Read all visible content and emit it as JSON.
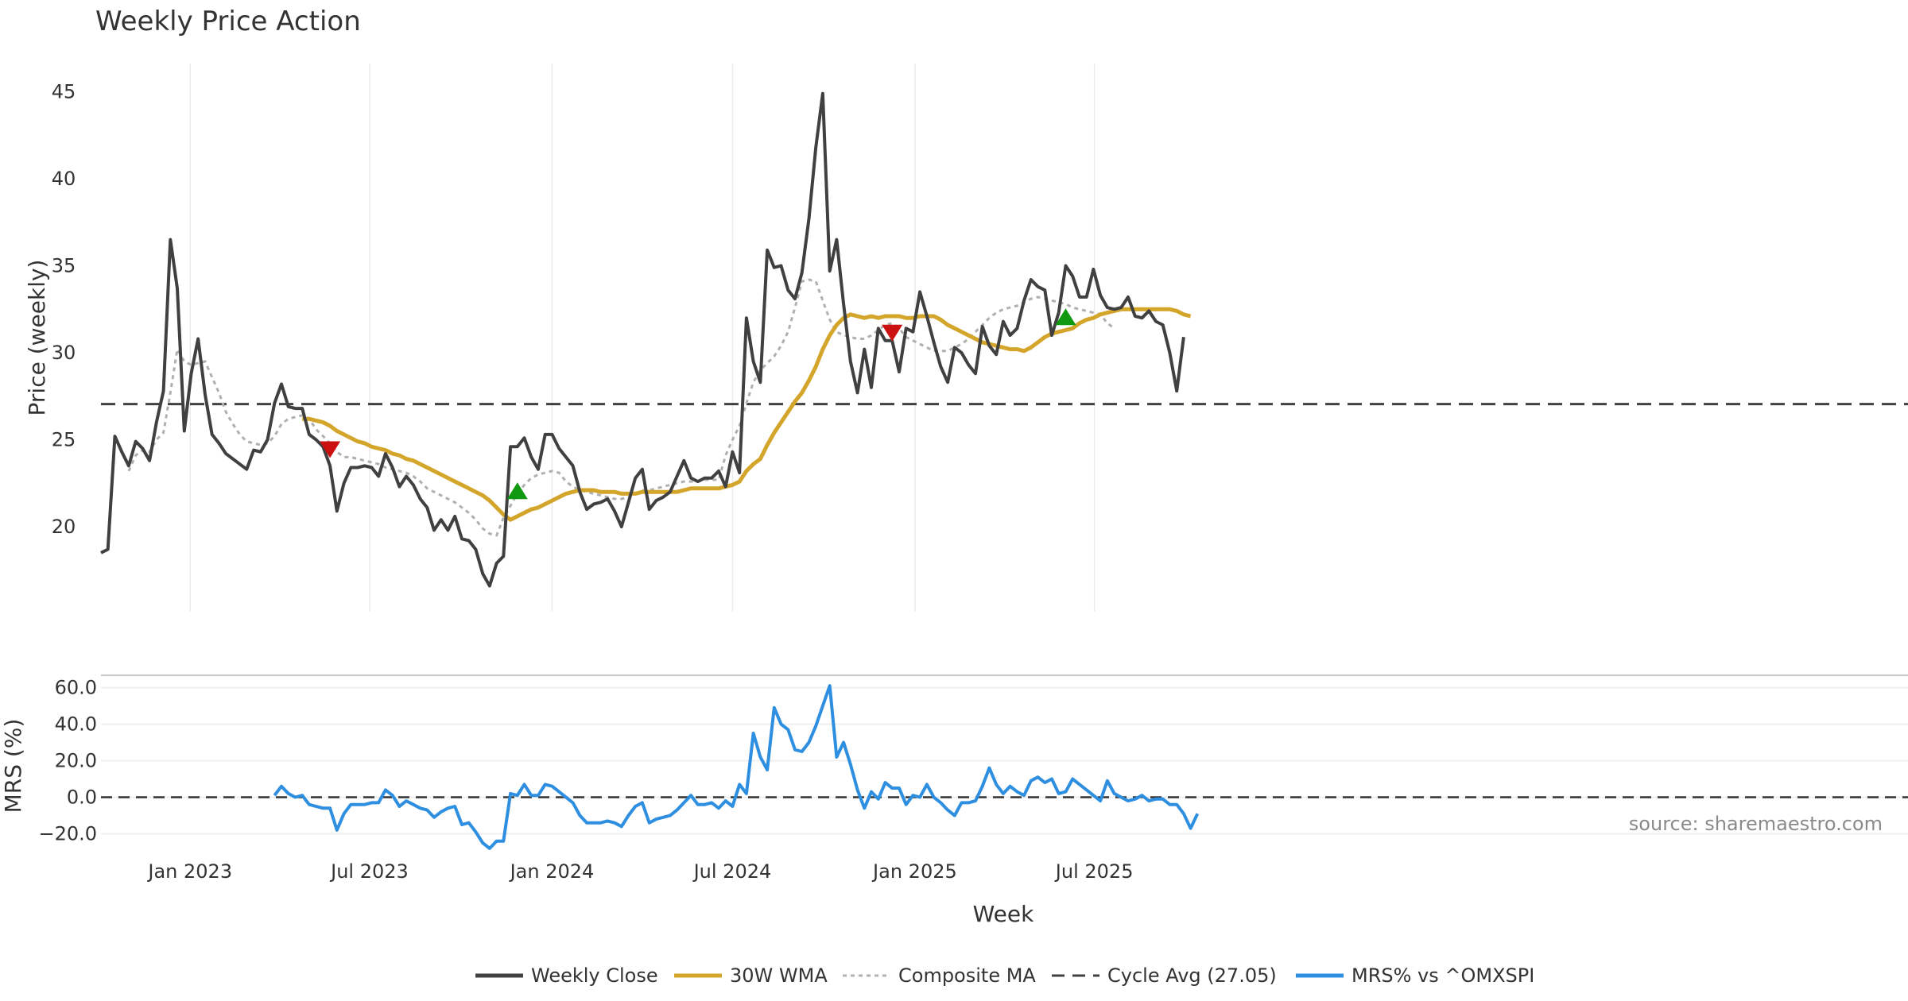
{
  "title": "Weekly Price Action",
  "watermark": "source: sharemaestro.com",
  "colors": {
    "close": "#404040",
    "wma": "#d4a52b",
    "composite": "#b0b0b0",
    "cycle": "#404040",
    "mrs": "#2e8fe0",
    "buy": "#119911",
    "sell": "#cc1111"
  },
  "chart_data": [
    {
      "type": "line",
      "title": "Weekly Price Action",
      "xlabel": "",
      "ylabel": "Price (weekly)",
      "x_type": "date",
      "x_ticks": [
        "Jan 2023",
        "Jul 2023",
        "Jan 2024",
        "Jul 2024",
        "Jan 2025",
        "Jul 2025"
      ],
      "y_ticks": [
        20,
        25,
        30,
        35,
        40,
        45
      ],
      "ylim": [
        15,
        46.5
      ],
      "grid": "vertical",
      "start_date": "2022-10-03",
      "end_date": "2025-10-13",
      "series": [
        {
          "name": "Weekly Close",
          "values": [
            18.5,
            18.7,
            25.2,
            24.3,
            23.5,
            24.9,
            24.5,
            23.8,
            26.0,
            27.8,
            36.5,
            33.7,
            25.5,
            28.8,
            30.8,
            27.6,
            25.3,
            24.8,
            24.2,
            23.9,
            23.6,
            23.3,
            24.4,
            24.3,
            25.0,
            27.1,
            28.2,
            26.9,
            26.8,
            26.8,
            25.3,
            25.0,
            24.6,
            23.5,
            20.9,
            22.5,
            23.4,
            23.4,
            23.5,
            23.4,
            22.9,
            24.2,
            23.4,
            22.3,
            22.9,
            22.4,
            21.6,
            21.1,
            19.8,
            20.4,
            19.8,
            20.6,
            19.3,
            19.2,
            18.7,
            17.3,
            16.6,
            17.9,
            18.3,
            24.6,
            24.6,
            25.1,
            24.0,
            23.3,
            25.3,
            25.3,
            24.5,
            24.0,
            23.5,
            22.0,
            21.0,
            21.3,
            21.4,
            21.6,
            20.9,
            20.0,
            21.4,
            22.8,
            23.3,
            21.0,
            21.5,
            21.7,
            22.0,
            22.9,
            23.8,
            22.8,
            22.6,
            22.8,
            22.8,
            23.2,
            22.3,
            24.3,
            23.1,
            32.0,
            29.5,
            28.3,
            35.9,
            34.9,
            35.0,
            33.6,
            33.1,
            34.6,
            37.7,
            41.8,
            44.9,
            34.7,
            36.5,
            32.8,
            29.5,
            27.7,
            30.2,
            28.0,
            31.4,
            30.7,
            30.7,
            28.9,
            31.4,
            31.2,
            33.5,
            32.1,
            30.6,
            29.2,
            28.3,
            30.3,
            30.0,
            29.3,
            28.8,
            31.5,
            30.4,
            29.9,
            31.8,
            31.0,
            31.4,
            33.0,
            34.2,
            33.8,
            33.6,
            31.0,
            32.3,
            35.0,
            34.4,
            33.2,
            33.2,
            34.8,
            33.3,
            32.6,
            32.5,
            32.6,
            33.2,
            32.1,
            32.0,
            32.4,
            31.8,
            31.6,
            30.0,
            27.8,
            30.9
          ]
        },
        {
          "name": "30W WMA",
          "start_index": 29,
          "values": [
            26.2,
            26.2,
            26.1,
            26.0,
            25.8,
            25.5,
            25.3,
            25.1,
            24.9,
            24.8,
            24.6,
            24.5,
            24.4,
            24.2,
            24.1,
            23.9,
            23.8,
            23.6,
            23.4,
            23.2,
            23.0,
            22.8,
            22.6,
            22.4,
            22.2,
            22.0,
            21.8,
            21.5,
            21.1,
            20.7,
            20.4,
            20.6,
            20.8,
            21.0,
            21.1,
            21.3,
            21.5,
            21.7,
            21.9,
            22.0,
            22.1,
            22.1,
            22.1,
            22.0,
            22.0,
            22.0,
            21.9,
            21.9,
            21.9,
            22.0,
            22.0,
            22.0,
            22.0,
            22.0,
            22.0,
            22.1,
            22.2,
            22.2,
            22.2,
            22.2,
            22.2,
            22.3,
            22.4,
            22.6,
            23.2,
            23.6,
            23.9,
            24.7,
            25.4,
            26.0,
            26.6,
            27.2,
            27.7,
            28.4,
            29.2,
            30.2,
            31.0,
            31.6,
            32.0,
            32.2,
            32.1,
            32.0,
            32.1,
            32.0,
            32.1,
            32.1,
            32.1,
            32.0,
            32.0,
            32.1,
            32.1,
            32.1,
            31.9,
            31.6,
            31.4,
            31.2,
            31.0,
            30.8,
            30.6,
            30.5,
            30.4,
            30.3,
            30.2,
            30.2,
            30.1,
            30.3,
            30.6,
            30.9,
            31.1,
            31.2,
            31.3,
            31.4,
            31.7,
            31.9,
            32.0,
            32.2,
            32.3,
            32.4,
            32.5,
            32.5,
            32.5,
            32.5,
            32.5,
            32.5,
            32.5,
            32.5,
            32.4,
            32.2,
            32.1
          ]
        },
        {
          "name": "Composite MA",
          "start_index": 4,
          "values": [
            23.2,
            24.1,
            24.4,
            24.3,
            25.0,
            25.4,
            27.7,
            30.2,
            29.5,
            29.3,
            29.4,
            29.5,
            28.6,
            27.7,
            26.6,
            25.9,
            25.3,
            24.9,
            24.8,
            24.7,
            24.8,
            25.2,
            25.9,
            26.2,
            26.3,
            26.4,
            26.2,
            25.6,
            25.2,
            24.8,
            24.3,
            24.0,
            24.0,
            23.9,
            23.8,
            23.7,
            23.6,
            23.4,
            23.3,
            23.2,
            23.1,
            22.9,
            22.6,
            22.2,
            22.0,
            21.8,
            21.6,
            21.4,
            21.1,
            20.8,
            20.4,
            19.9,
            19.6,
            19.5,
            20.5,
            21.2,
            21.9,
            22.4,
            22.8,
            23.0,
            23.1,
            23.2,
            23.1,
            22.6,
            22.3,
            22.1,
            22.0,
            21.9,
            21.8,
            21.7,
            21.6,
            21.6,
            21.7,
            21.9,
            22.1,
            22.1,
            22.2,
            22.3,
            22.4,
            22.5,
            22.6,
            22.6,
            22.6,
            22.7,
            22.7,
            22.7,
            24.1,
            25.0,
            25.8,
            27.1,
            28.3,
            29.0,
            29.4,
            29.8,
            30.4,
            31.2,
            32.6,
            34.1,
            34.2,
            34.1,
            33.0,
            31.9,
            31.2,
            31.0,
            30.9,
            30.8,
            30.8,
            31.0,
            31.3,
            31.6,
            31.7,
            31.4,
            30.9,
            30.7,
            30.5,
            30.3,
            30.1,
            30.1,
            30.1,
            30.3,
            30.5,
            30.8,
            31.2,
            31.6,
            32.0,
            32.3,
            32.5,
            32.6,
            32.7,
            32.9,
            33.1,
            33.2,
            33.1,
            33.0,
            32.9,
            32.8,
            32.6,
            32.5,
            32.4,
            32.3,
            32.2,
            31.7,
            31.4
          ]
        },
        {
          "name": "Cycle Avg (27.05)",
          "constant": 27.05
        }
      ],
      "signals": [
        {
          "type": "sell",
          "index": 33,
          "y": 24.5
        },
        {
          "type": "buy",
          "index": 60,
          "y": 22.0
        },
        {
          "type": "sell",
          "index": 114,
          "y": 31.2
        },
        {
          "type": "buy",
          "index": 139,
          "y": 32.0
        }
      ]
    },
    {
      "type": "line",
      "ylabel": "MRS (%)",
      "xlabel": "Week",
      "y_ticks": [
        60.0,
        40.0,
        20.0,
        0.0,
        -20.0
      ],
      "y_tick_labels": [
        "60.0",
        "40.0",
        "20.0",
        "0.0",
        "−20.0"
      ],
      "ylim": [
        -27,
        68
      ],
      "grid": "horizontal",
      "series": [
        {
          "name": "MRS% vs ^OMXSPI",
          "start_index": 25,
          "values": [
            1.0,
            6.0,
            2.0,
            0.0,
            1.0,
            -4.0,
            -5.0,
            -6.0,
            -6.0,
            -18.0,
            -9.0,
            -4.0,
            -4.0,
            -4.0,
            -3.0,
            -3.0,
            4.0,
            1.0,
            -5.0,
            -2.0,
            -4.0,
            -6.0,
            -7.0,
            -11.0,
            -8.0,
            -6.0,
            -5.0,
            -15.0,
            -14.0,
            -19.0,
            -25.0,
            -28.0,
            -24.0,
            -24.0,
            2.0,
            1.0,
            7.0,
            1.0,
            1.0,
            7.0,
            6.0,
            3.0,
            0.0,
            -3.0,
            -10.0,
            -14.0,
            -14.0,
            -14.0,
            -13.0,
            -14.0,
            -16.0,
            -10.0,
            -5.0,
            -3.0,
            -14.0,
            -12.0,
            -11.0,
            -10.0,
            -7.0,
            -3.0,
            1.0,
            -4.0,
            -4.0,
            -3.0,
            -6.0,
            -2.0,
            -5.0,
            7.0,
            2.0,
            35.0,
            22.0,
            15.0,
            49.0,
            40.0,
            37.0,
            26.0,
            25.0,
            30.0,
            39.0,
            50.0,
            61.0,
            22.0,
            30.0,
            18.0,
            4.0,
            -6.0,
            3.0,
            -1.0,
            8.0,
            5.0,
            5.0,
            -4.0,
            1.0,
            0.0,
            7.0,
            0.0,
            -3.0,
            -7.0,
            -10.0,
            -3.0,
            -3.0,
            -2.0,
            6.0,
            16.0,
            7.0,
            2.0,
            6.0,
            3.0,
            1.0,
            9.0,
            11.0,
            8.0,
            10.0,
            2.0,
            3.0,
            10.0,
            7.0,
            4.0,
            1.0,
            -2.0,
            9.0,
            2.0,
            0.0,
            -2.0,
            -1.0,
            1.0,
            -2.0,
            -1.0,
            -1.0,
            -4.0,
            -4.0,
            -9.0,
            -17.0,
            -9.0
          ]
        },
        {
          "name": "zero line",
          "constant": 0
        }
      ]
    }
  ],
  "legend": {
    "placement": "bottom",
    "items": [
      {
        "label": "Weekly Close",
        "style": "solid",
        "color": "#404040"
      },
      {
        "label": "30W WMA",
        "style": "solid",
        "color": "#d4a52b"
      },
      {
        "label": "Composite MA",
        "style": "dotted",
        "color": "#b0b0b0"
      },
      {
        "label": "Cycle Avg (27.05)",
        "style": "dashed",
        "color": "#404040"
      },
      {
        "label": "MRS% vs ^OMXSPI",
        "style": "solid",
        "color": "#2e8fe0"
      }
    ]
  }
}
